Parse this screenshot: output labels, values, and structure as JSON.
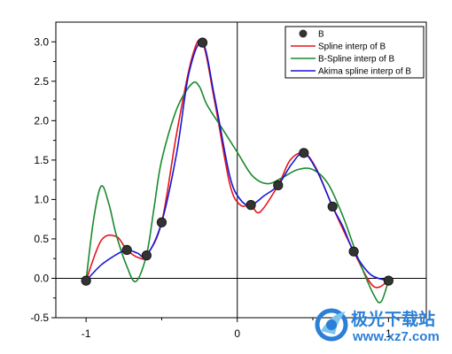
{
  "chart_data": {
    "type": "line",
    "xlim": [
      -1.2,
      1.25
    ],
    "ylim": [
      -0.5,
      3.25
    ],
    "x_ticks": [
      -1,
      0,
      1
    ],
    "x_tick_labels": [
      "-1",
      "0",
      "1"
    ],
    "y_ticks": [
      -0.5,
      0.0,
      0.5,
      1.0,
      1.5,
      2.0,
      2.5,
      3.0
    ],
    "y_tick_labels": [
      "-0.5",
      "0.0",
      "0.5",
      "1.0",
      "1.5",
      "2.0",
      "2.5",
      "3.0"
    ],
    "zero_lines": true,
    "grid": false,
    "legend_position": "top-right",
    "points": {
      "name": "B",
      "color": "#333333",
      "x": [
        -1.0,
        -0.73,
        -0.6,
        -0.5,
        -0.23,
        0.09,
        0.27,
        0.44,
        0.63,
        0.77,
        1.0
      ],
      "y": [
        -0.03,
        0.36,
        0.29,
        0.71,
        2.99,
        0.93,
        1.18,
        1.59,
        0.91,
        0.34,
        -0.03
      ]
    },
    "series": [
      {
        "name": "Spline interp of B",
        "color": "#e8141b",
        "x": [
          -1.0,
          -0.9,
          -0.8,
          -0.73,
          -0.65,
          -0.6,
          -0.5,
          -0.4,
          -0.3,
          -0.23,
          -0.15,
          -0.05,
          0.02,
          0.09,
          0.15,
          0.27,
          0.35,
          0.44,
          0.52,
          0.63,
          0.77,
          0.9,
          1.0
        ],
        "y": [
          -0.03,
          0.48,
          0.53,
          0.36,
          0.26,
          0.29,
          0.71,
          1.85,
          2.8,
          2.99,
          2.25,
          1.2,
          0.93,
          0.93,
          0.84,
          1.18,
          1.5,
          1.59,
          1.4,
          0.91,
          0.34,
          -0.1,
          -0.03
        ]
      },
      {
        "name": "B-Spline interp of B",
        "color": "#1a8a2e",
        "x": [
          -1.0,
          -0.95,
          -0.9,
          -0.85,
          -0.8,
          -0.73,
          -0.67,
          -0.6,
          -0.55,
          -0.5,
          -0.4,
          -0.3,
          -0.25,
          -0.2,
          -0.1,
          0.0,
          0.1,
          0.2,
          0.3,
          0.4,
          0.5,
          0.6,
          0.7,
          0.8,
          0.9,
          0.95,
          1.0
        ],
        "y": [
          -0.03,
          0.75,
          1.17,
          0.95,
          0.55,
          0.15,
          -0.04,
          0.3,
          0.9,
          1.5,
          2.15,
          2.47,
          2.43,
          2.2,
          1.9,
          1.6,
          1.3,
          1.2,
          1.28,
          1.38,
          1.38,
          1.2,
          0.78,
          0.25,
          -0.2,
          -0.3,
          -0.03
        ]
      },
      {
        "name": "Akima spline interp of B",
        "color": "#1717d4",
        "x": [
          -1.0,
          -0.9,
          -0.8,
          -0.73,
          -0.66,
          -0.6,
          -0.5,
          -0.4,
          -0.32,
          -0.23,
          -0.15,
          -0.05,
          0.02,
          0.09,
          0.18,
          0.27,
          0.36,
          0.44,
          0.53,
          0.63,
          0.7,
          0.77,
          0.88,
          1.0
        ],
        "y": [
          -0.03,
          0.17,
          0.3,
          0.36,
          0.32,
          0.29,
          0.71,
          1.6,
          2.6,
          2.99,
          2.3,
          1.3,
          1.0,
          0.93,
          1.05,
          1.18,
          1.45,
          1.59,
          1.35,
          0.91,
          0.65,
          0.34,
          0.05,
          -0.03
        ]
      }
    ]
  },
  "watermark": {
    "title": "极光下载站",
    "url": "www.xz7.com"
  }
}
